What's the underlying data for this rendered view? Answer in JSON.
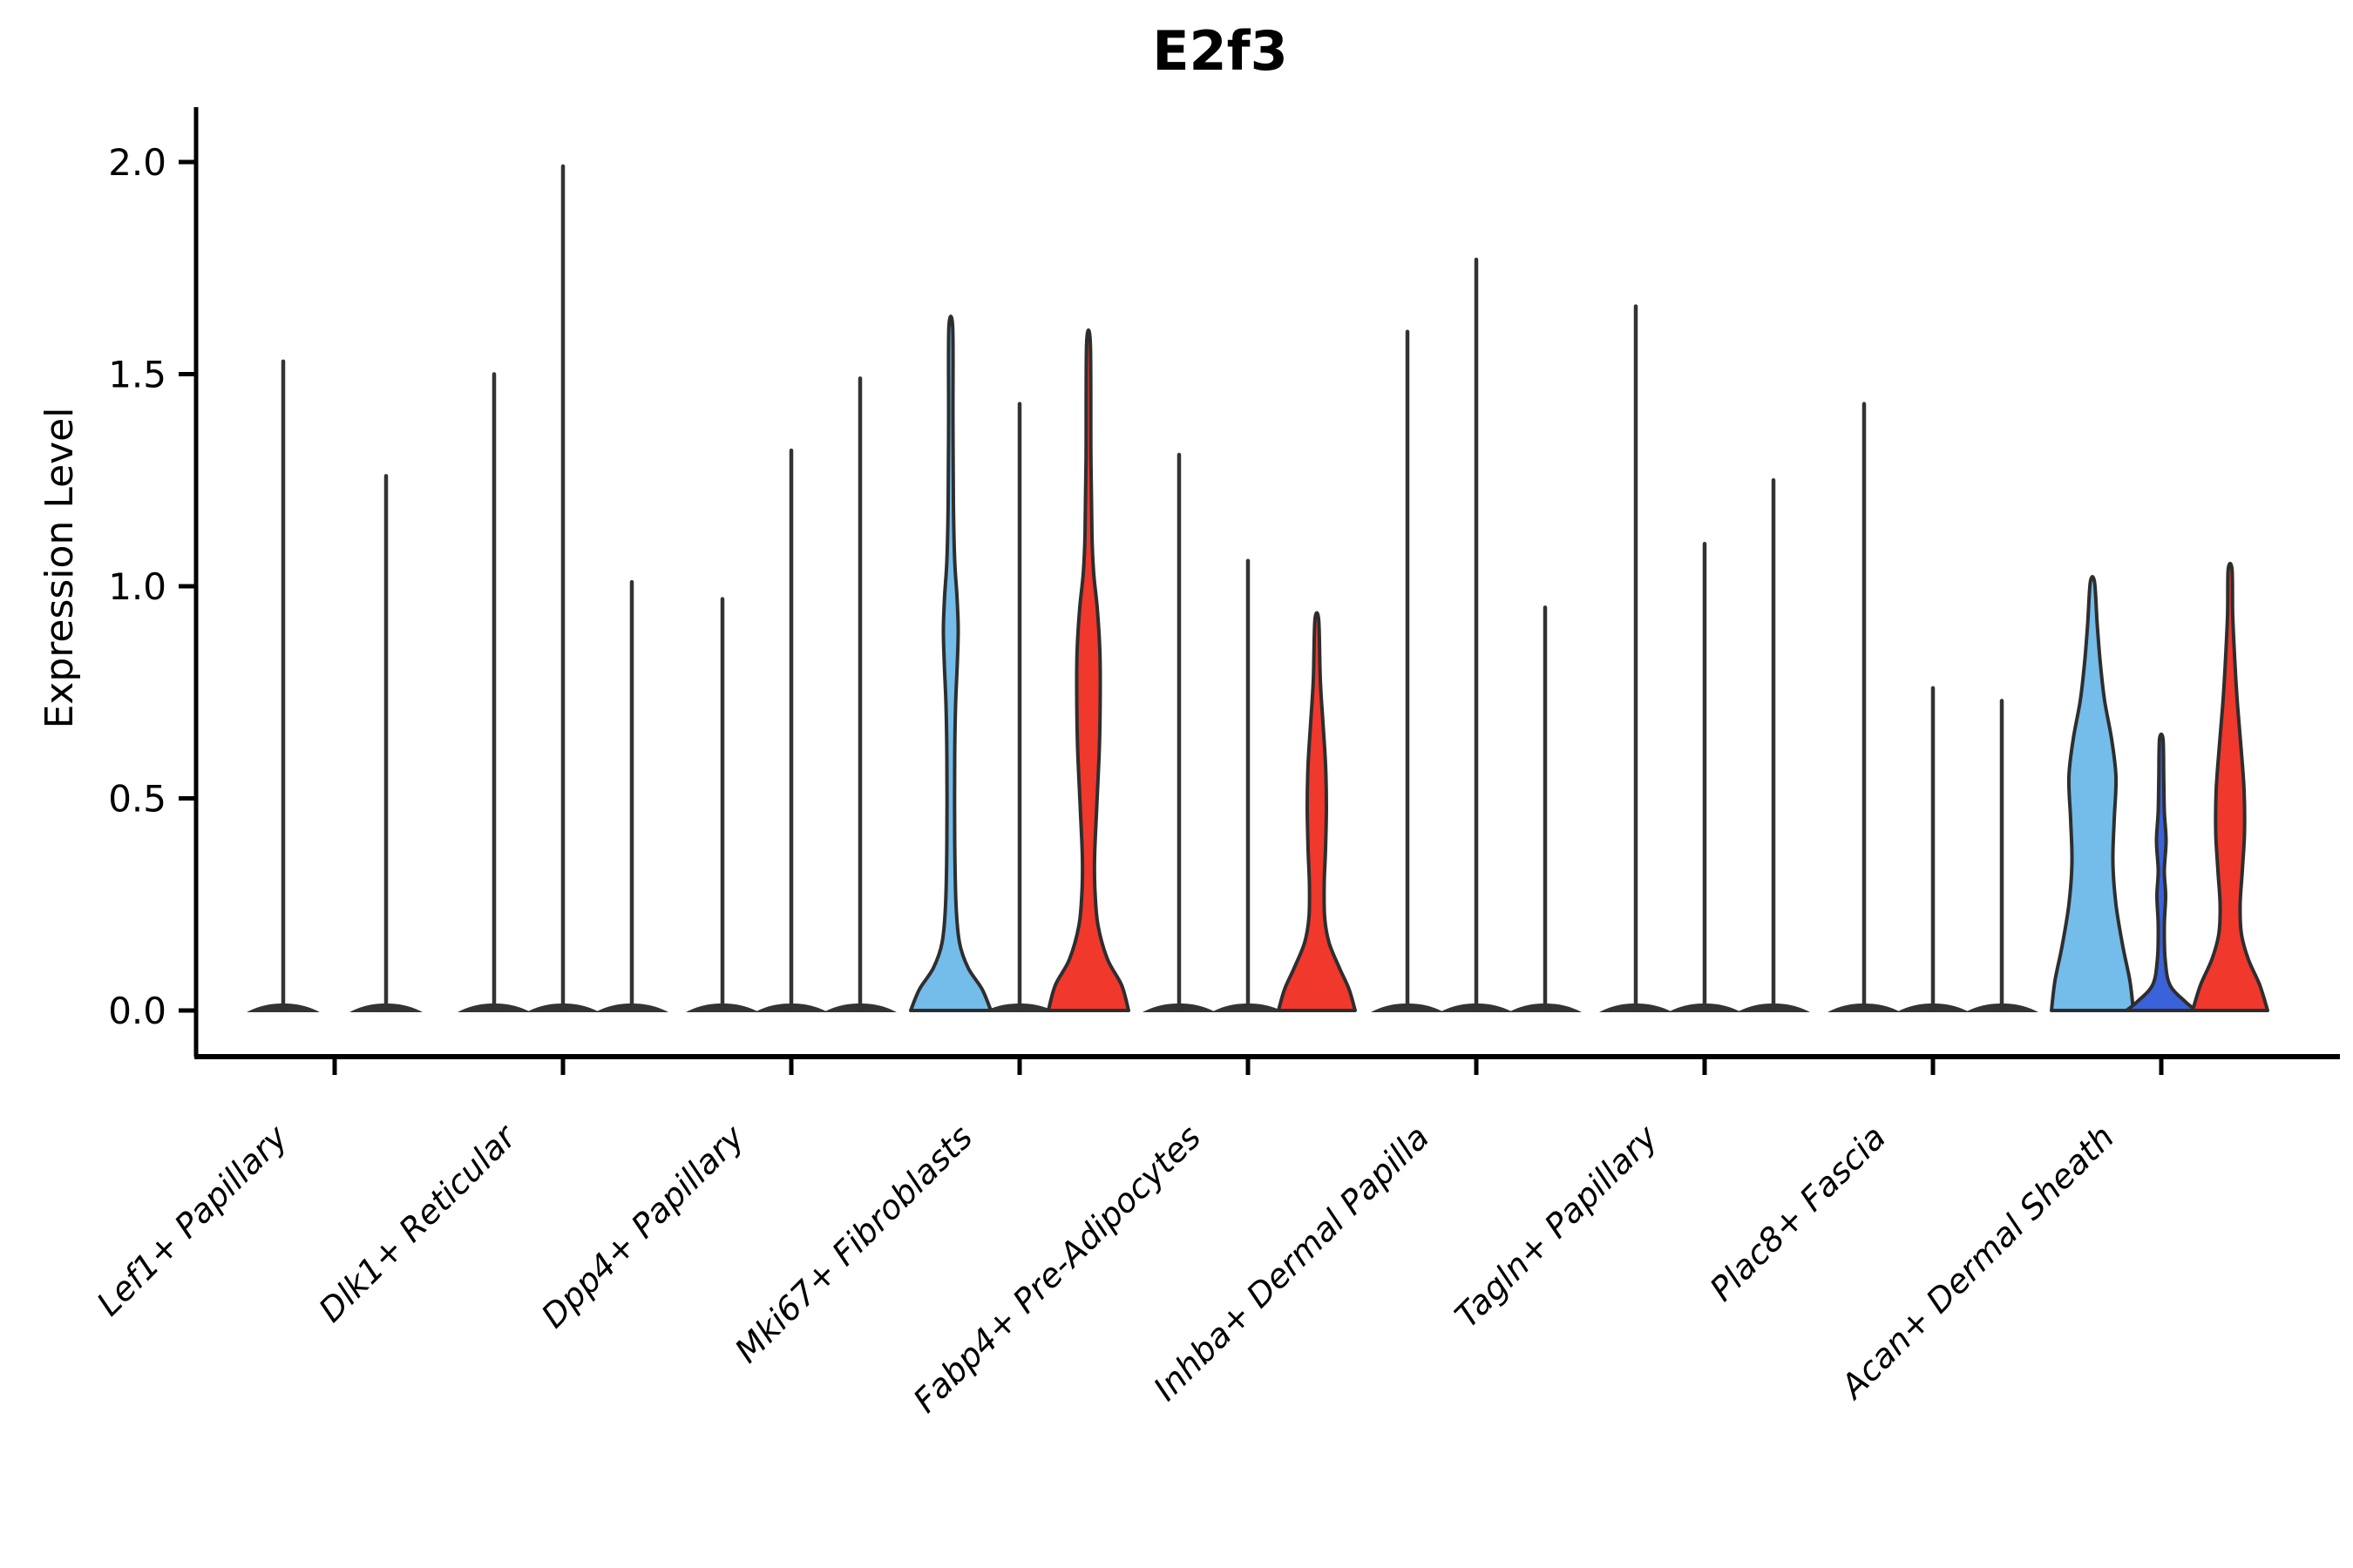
{
  "chart_data": {
    "type": "violin",
    "title": "E2f3",
    "ylabel": "Expression Level",
    "xlabel": "",
    "ylim": [
      -0.11,
      2.13
    ],
    "yticks": [
      0,
      0.5,
      1,
      1.5,
      2
    ],
    "ytick_labels": [
      "0.0",
      "0.5",
      "1.0",
      "1.5",
      "2.0"
    ],
    "grid": false,
    "legend_position": "none",
    "colors": {
      "blue": "#74BCE9",
      "dark_blue": "#3A62D9",
      "red": "#F0382C",
      "thin": "#333333",
      "outline": "#2E2E2E",
      "axis": "#000000",
      "text": "#000000"
    },
    "groups": [
      {
        "category": "Lef1+ Papillary",
        "violins": [
          {
            "offset": -59,
            "style": "thin",
            "color_key": "thin",
            "tip": 1.53
          },
          {
            "offset": 59,
            "style": "thin",
            "color_key": "thin",
            "tip": 1.26
          }
        ]
      },
      {
        "category": "Dlk1+ Reticular",
        "violins": [
          {
            "offset": -79,
            "style": "thin",
            "color_key": "thin",
            "tip": 1.5
          },
          {
            "offset": 0,
            "style": "thin",
            "color_key": "thin",
            "tip": 1.99
          },
          {
            "offset": 79,
            "style": "thin",
            "color_key": "thin",
            "tip": 1.01
          }
        ]
      },
      {
        "category": "Dpp4+ Papillary",
        "violins": [
          {
            "offset": -79,
            "style": "thin",
            "color_key": "thin",
            "tip": 0.97
          },
          {
            "offset": 0,
            "style": "thin",
            "color_key": "thin",
            "tip": 1.32
          },
          {
            "offset": 79,
            "style": "thin",
            "color_key": "thin",
            "tip": 1.49
          }
        ]
      },
      {
        "category": "Mki67+ Fibroblasts",
        "violins": [
          {
            "offset": -79,
            "style": "shaped",
            "color_key": "blue",
            "tip": 1.61,
            "profile": [
              [
                0,
                46
              ],
              [
                0.05,
                36
              ],
              [
                0.1,
                20
              ],
              [
                0.16,
                10
              ],
              [
                0.25,
                6
              ],
              [
                0.4,
                4.5
              ],
              [
                0.6,
                4.5
              ],
              [
                0.72,
                5.5
              ],
              [
                0.82,
                7.5
              ],
              [
                0.9,
                8.5
              ],
              [
                0.98,
                7
              ],
              [
                1.06,
                4.5
              ],
              [
                1.2,
                3
              ],
              [
                1.4,
                2.5
              ],
              [
                1.61,
                2.2
              ]
            ]
          },
          {
            "offset": 0,
            "style": "thin",
            "color_key": "thin",
            "tip": 1.43
          },
          {
            "offset": 79,
            "style": "shaped",
            "color_key": "red",
            "tip": 1.57,
            "profile": [
              [
                0,
                46
              ],
              [
                0.06,
                38
              ],
              [
                0.12,
                22
              ],
              [
                0.2,
                11
              ],
              [
                0.28,
                7.5
              ],
              [
                0.36,
                7
              ],
              [
                0.48,
                9.5
              ],
              [
                0.62,
                12.5
              ],
              [
                0.75,
                13.5
              ],
              [
                0.85,
                13
              ],
              [
                0.95,
                10
              ],
              [
                1.03,
                6
              ],
              [
                1.12,
                4
              ],
              [
                1.3,
                2.8
              ],
              [
                1.57,
                2.2
              ]
            ]
          }
        ]
      },
      {
        "category": "Fabp4+ Pre-Adipocytes",
        "violins": [
          {
            "offset": -79,
            "style": "thin",
            "color_key": "thin",
            "tip": 1.31
          },
          {
            "offset": 0,
            "style": "thin",
            "color_key": "thin",
            "tip": 1.06
          },
          {
            "offset": 79,
            "style": "shaped",
            "color_key": "red",
            "tip": 0.92,
            "profile": [
              [
                0,
                44
              ],
              [
                0.05,
                37
              ],
              [
                0.1,
                26
              ],
              [
                0.16,
                14
              ],
              [
                0.22,
                9
              ],
              [
                0.3,
                8.5
              ],
              [
                0.38,
                10
              ],
              [
                0.48,
                11
              ],
              [
                0.58,
                10
              ],
              [
                0.68,
                7
              ],
              [
                0.78,
                4
              ],
              [
                0.92,
                2.2
              ]
            ]
          }
        ]
      },
      {
        "category": "Inhba+ Dermal Papilla",
        "violins": [
          {
            "offset": -79,
            "style": "thin",
            "color_key": "thin",
            "tip": 1.6
          },
          {
            "offset": 0,
            "style": "thin",
            "color_key": "thin",
            "tip": 1.77
          },
          {
            "offset": 79,
            "style": "thin",
            "color_key": "thin",
            "tip": 0.95
          }
        ]
      },
      {
        "category": "Tagln+ Papillary",
        "violins": [
          {
            "offset": -79,
            "style": "thin",
            "color_key": "thin",
            "tip": 1.66
          },
          {
            "offset": 0,
            "style": "thin",
            "color_key": "thin",
            "tip": 1.1
          },
          {
            "offset": 79,
            "style": "thin",
            "color_key": "thin",
            "tip": 1.25
          }
        ]
      },
      {
        "category": "Plac8+ Fascia",
        "violins": [
          {
            "offset": -79,
            "style": "thin",
            "color_key": "thin",
            "tip": 1.43
          },
          {
            "offset": 0,
            "style": "thin",
            "color_key": "thin",
            "tip": 0.76
          },
          {
            "offset": 79,
            "style": "thin",
            "color_key": "thin",
            "tip": 0.73
          }
        ]
      },
      {
        "category": "Acan+ Dermal Sheath",
        "violins": [
          {
            "offset": -79,
            "style": "shaped",
            "color_key": "blue",
            "tip": 1.01,
            "profile": [
              [
                0,
                47
              ],
              [
                0.07,
                43
              ],
              [
                0.15,
                35
              ],
              [
                0.25,
                27
              ],
              [
                0.35,
                23.5
              ],
              [
                0.45,
                25
              ],
              [
                0.55,
                27
              ],
              [
                0.64,
                22
              ],
              [
                0.73,
                14
              ],
              [
                0.82,
                9
              ],
              [
                0.91,
                5.5
              ],
              [
                1.01,
                2.4
              ]
            ]
          },
          {
            "offset": 0,
            "style": "shaped",
            "color_key": "dark_blue",
            "tip": 0.64,
            "profile": [
              [
                0,
                40
              ],
              [
                0.02,
                28
              ],
              [
                0.06,
                10
              ],
              [
                0.12,
                4.5
              ],
              [
                0.2,
                3.5
              ],
              [
                0.27,
                5
              ],
              [
                0.33,
                3.5
              ],
              [
                0.4,
                5.5
              ],
              [
                0.47,
                3.5
              ],
              [
                0.55,
                2.8
              ],
              [
                0.64,
                2
              ]
            ]
          },
          {
            "offset": 79,
            "style": "shaped",
            "color_key": "red",
            "tip": 1.04,
            "profile": [
              [
                0,
                43
              ],
              [
                0.06,
                34
              ],
              [
                0.12,
                21
              ],
              [
                0.18,
                13
              ],
              [
                0.25,
                11.5
              ],
              [
                0.33,
                14
              ],
              [
                0.42,
                16.5
              ],
              [
                0.52,
                16
              ],
              [
                0.62,
                12.5
              ],
              [
                0.72,
                8.5
              ],
              [
                0.82,
                5.5
              ],
              [
                0.93,
                3
              ],
              [
                1.04,
                2.2
              ]
            ]
          }
        ]
      }
    ]
  }
}
